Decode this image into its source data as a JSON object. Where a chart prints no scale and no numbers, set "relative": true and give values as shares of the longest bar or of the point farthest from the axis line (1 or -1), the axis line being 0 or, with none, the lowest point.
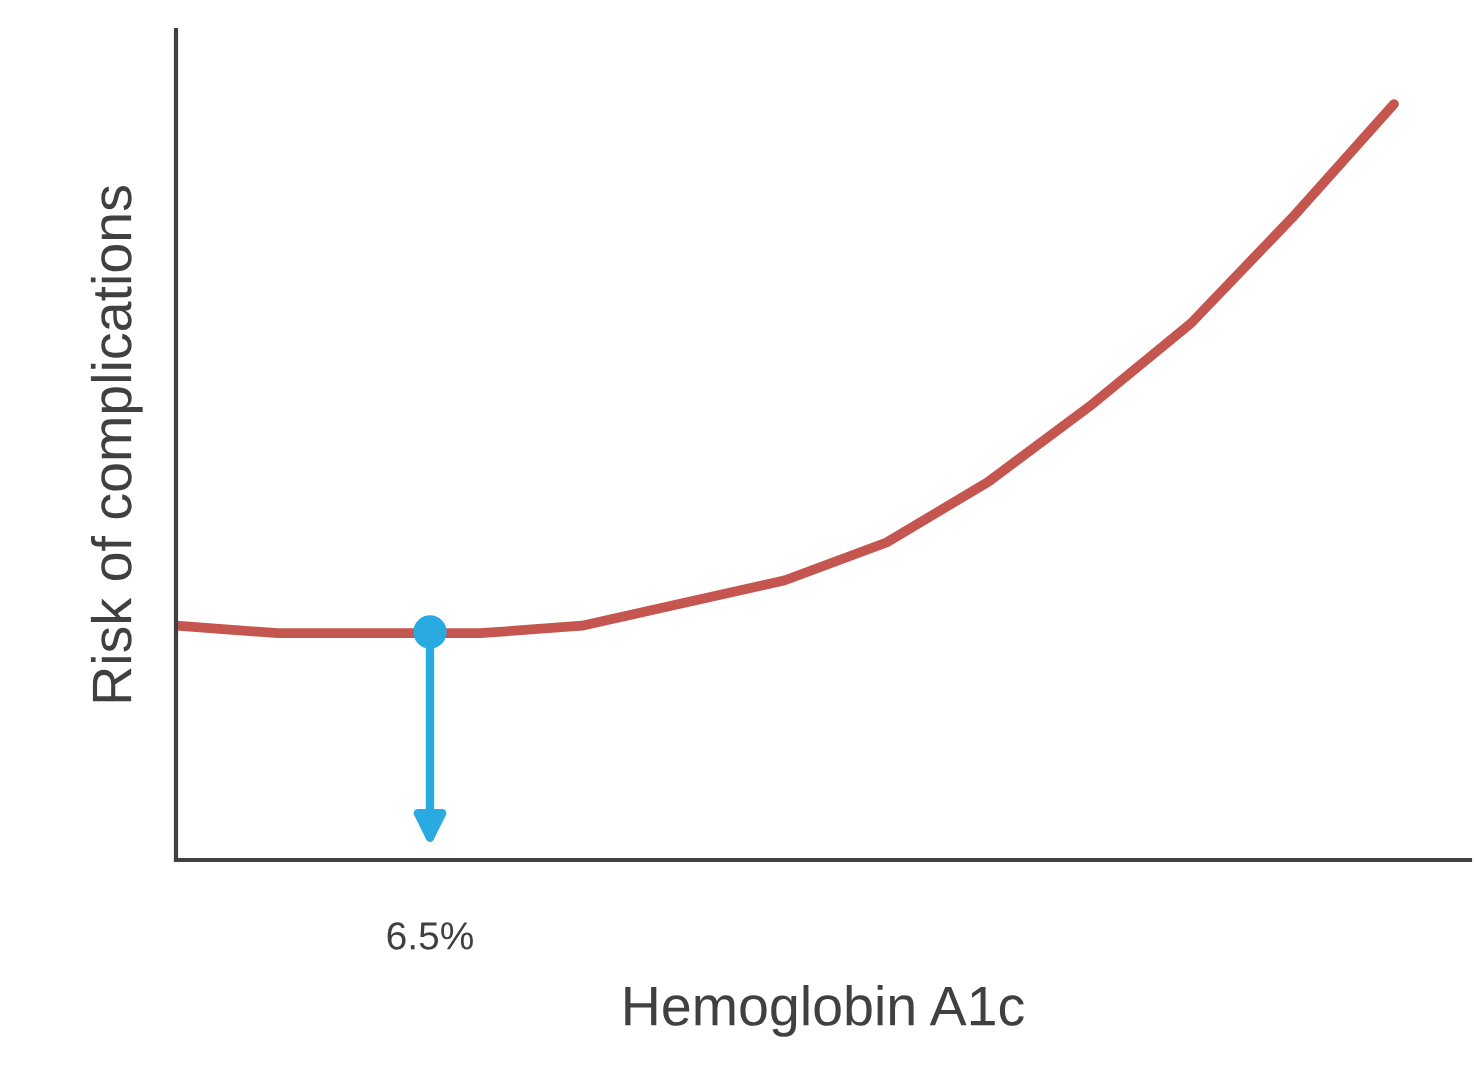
{
  "chart_data": {
    "type": "line",
    "relative": true,
    "xlabel": "Hemoglobin A1c",
    "ylabel": "Risk of complications",
    "categories": [
      null,
      null,
      null,
      null,
      null,
      null,
      null,
      null,
      null,
      null,
      null,
      null,
      null
    ],
    "series": [
      {
        "color": "#c5564f",
        "values": [
          0.31,
          0.3,
          0.3,
          0.3,
          0.31,
          0.34,
          0.37,
          0.42,
          0.5,
          0.6,
          0.71,
          0.85,
          1.0
        ]
      }
    ],
    "annotations": [
      "6.5%"
    ],
    "legend": false,
    "marker": "none",
    "line_style": "solid"
  }
}
